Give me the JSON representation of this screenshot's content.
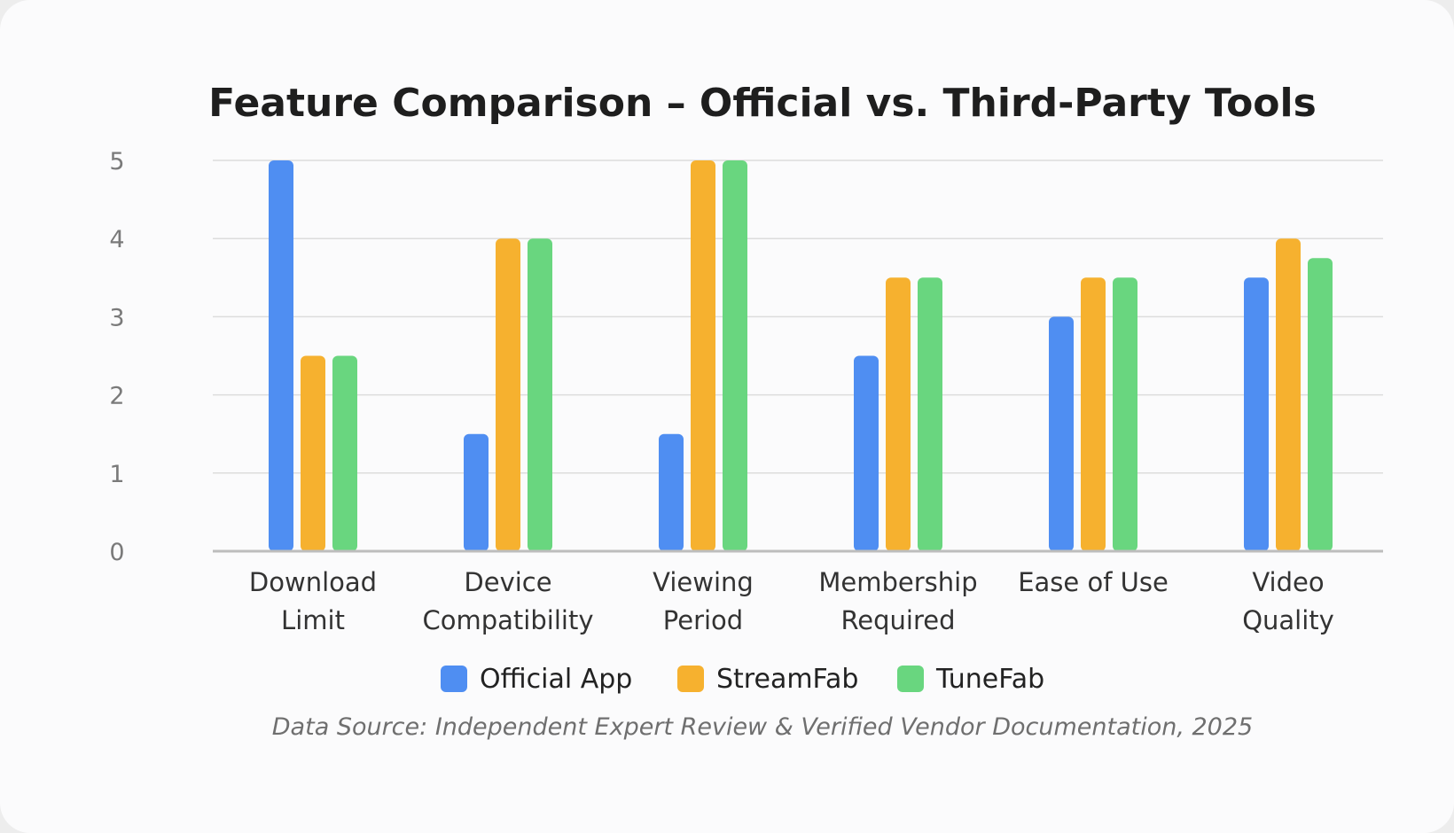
{
  "chart_data": {
    "type": "bar",
    "title": "Feature Comparison – Official vs. Third-Party Tools",
    "categories": [
      [
        "Download",
        "Limit"
      ],
      [
        "Device",
        "Compatibility"
      ],
      [
        "Viewing",
        "Period"
      ],
      [
        "Membership",
        "Required"
      ],
      [
        "Ease of Use"
      ],
      [
        "Video",
        "Quality"
      ]
    ],
    "series": [
      {
        "name": "Official App",
        "color": "#4f8ef2",
        "values": [
          5,
          1.5,
          1.5,
          2.5,
          3,
          3.5
        ]
      },
      {
        "name": "StreamFab",
        "color": "#f6b12f",
        "values": [
          2.5,
          4,
          5,
          3.5,
          3.5,
          4
        ]
      },
      {
        "name": "TuneFab",
        "color": "#69d67f",
        "values": [
          2.5,
          4,
          5,
          3.5,
          3.5,
          3.75
        ]
      }
    ],
    "ylim": [
      0,
      5
    ],
    "yticks": [
      "0",
      "1",
      "2",
      "3",
      "4",
      "5"
    ],
    "grid": true,
    "legend": "bottom",
    "source": "Data Source: Independent Expert Review & Verified Vendor Documentation, 2025"
  }
}
